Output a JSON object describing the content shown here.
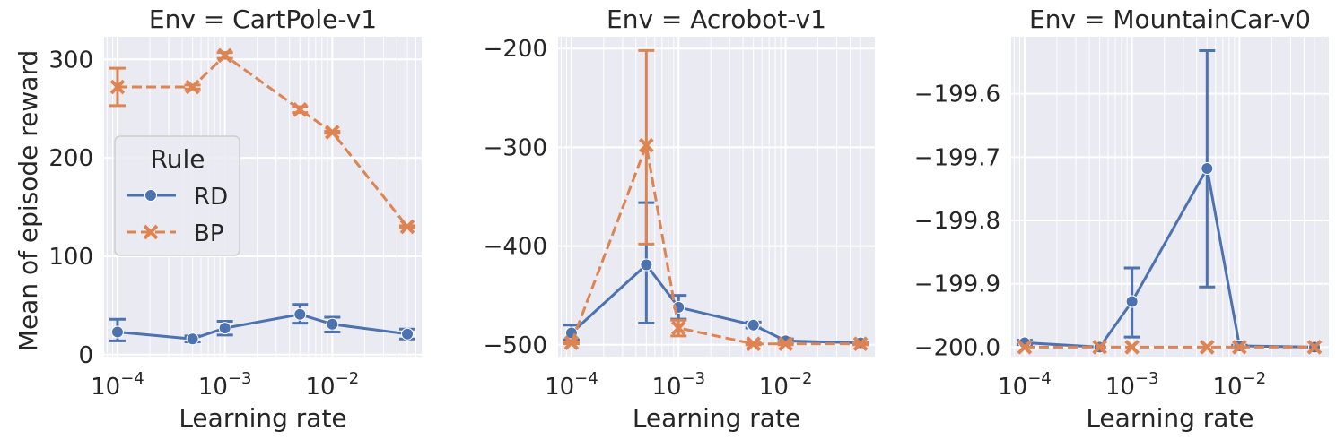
{
  "figure": {
    "ylabel": "Mean of episode reward",
    "legend": {
      "title": "Rule",
      "placement": "left",
      "entries": [
        {
          "label": "RD",
          "color": "#4c72b0",
          "marker": "circle",
          "style": "solid"
        },
        {
          "label": "BP",
          "color": "#dd8452",
          "marker": "x",
          "style": "dashed"
        }
      ]
    }
  },
  "chart_data": [
    {
      "type": "line",
      "title": "Env = CartPole-v1",
      "xlabel": "Learning rate",
      "ylabel": "Mean of episode reward",
      "xscale": "log",
      "xlim": [
        7.5e-05,
        0.068
      ],
      "ylim": [
        -2,
        323
      ],
      "xticks": [
        {
          "value": 0.0001,
          "mant": "10",
          "exp": "−4"
        },
        {
          "value": 0.001,
          "mant": "10",
          "exp": "−3"
        },
        {
          "value": 0.01,
          "mant": "10",
          "exp": "−2"
        }
      ],
      "yticks": [
        {
          "value": 0,
          "label": "0"
        },
        {
          "value": 100,
          "label": "100"
        },
        {
          "value": 200,
          "label": "200"
        },
        {
          "value": 300,
          "label": "300"
        }
      ],
      "grid": true,
      "series": [
        {
          "name": "RD",
          "x": [
            0.0001,
            0.0005,
            0.001,
            0.005,
            0.01,
            0.05
          ],
          "y": [
            23,
            16,
            27,
            41,
            31,
            21
          ],
          "err_low": [
            14,
            13,
            20,
            32,
            23,
            16
          ],
          "err_high": [
            36,
            19,
            34,
            51,
            38,
            26
          ]
        },
        {
          "name": "BP",
          "x": [
            0.0001,
            0.0005,
            0.001,
            0.005,
            0.01,
            0.05
          ],
          "y": [
            272,
            272,
            304,
            249,
            226,
            130
          ],
          "err_low": [
            253,
            270,
            301,
            246,
            225,
            129
          ],
          "err_high": [
            291,
            274,
            307,
            252,
            227,
            131
          ]
        }
      ]
    },
    {
      "type": "line",
      "title": "Env = Acrobot-v1",
      "xlabel": "Learning rate",
      "ylabel": "",
      "xscale": "log",
      "xlim": [
        7.5e-05,
        0.068
      ],
      "ylim": [
        -512,
        -188
      ],
      "xticks": [
        {
          "value": 0.0001,
          "mant": "10",
          "exp": "−4"
        },
        {
          "value": 0.001,
          "mant": "10",
          "exp": "−3"
        },
        {
          "value": 0.01,
          "mant": "10",
          "exp": "−2"
        }
      ],
      "yticks": [
        {
          "value": -500,
          "label": "−500"
        },
        {
          "value": -400,
          "label": "−400"
        },
        {
          "value": -300,
          "label": "−300"
        },
        {
          "value": -200,
          "label": "−200"
        }
      ],
      "grid": true,
      "series": [
        {
          "name": "RD",
          "x": [
            0.0001,
            0.0005,
            0.001,
            0.005,
            0.01,
            0.05
          ],
          "y": [
            -488,
            -419,
            -462,
            -480,
            -496,
            -498
          ],
          "err_low": [
            -495,
            -478,
            -474,
            -483,
            -498,
            -499
          ],
          "err_high": [
            -480,
            -356,
            -450,
            -477,
            -494,
            -497
          ]
        },
        {
          "name": "BP",
          "x": [
            0.0001,
            0.0005,
            0.001,
            0.005,
            0.01,
            0.05
          ],
          "y": [
            -498,
            -298,
            -483,
            -499,
            -499,
            -499
          ],
          "err_low": [
            -499,
            -398,
            -491,
            -500,
            -500,
            -500
          ],
          "err_high": [
            -497,
            -202,
            -475,
            -498,
            -498,
            -498
          ]
        }
      ]
    },
    {
      "type": "line",
      "title": "Env = MountainCar-v0",
      "xlabel": "Learning rate",
      "ylabel": "",
      "xscale": "log",
      "xlim": [
        7.5e-05,
        0.068
      ],
      "ylim": [
        -200.015,
        -199.51
      ],
      "xticks": [
        {
          "value": 0.0001,
          "mant": "10",
          "exp": "−4"
        },
        {
          "value": 0.001,
          "mant": "10",
          "exp": "−3"
        },
        {
          "value": 0.01,
          "mant": "10",
          "exp": "−2"
        }
      ],
      "yticks": [
        {
          "value": -200.0,
          "label": "−200.0"
        },
        {
          "value": -199.9,
          "label": "−199.9"
        },
        {
          "value": -199.8,
          "label": "−199.8"
        },
        {
          "value": -199.7,
          "label": "−199.7"
        },
        {
          "value": -199.6,
          "label": "−199.6"
        }
      ],
      "grid": true,
      "series": [
        {
          "name": "RD",
          "x": [
            0.0001,
            0.0005,
            0.001,
            0.005,
            0.01,
            0.05
          ],
          "y": [
            -199.993,
            -200.0,
            -199.928,
            -199.718,
            -199.998,
            -200.0
          ],
          "err_low": [
            -199.996,
            -200.0,
            -199.984,
            -199.905,
            -199.999,
            -200.0
          ],
          "err_high": [
            -199.989,
            -200.0,
            -199.875,
            -199.532,
            -199.997,
            -200.0
          ]
        },
        {
          "name": "BP",
          "x": [
            0.0001,
            0.0005,
            0.001,
            0.005,
            0.01,
            0.05
          ],
          "y": [
            -200.0,
            -200.0,
            -200.0,
            -200.0,
            -200.0,
            -200.0
          ],
          "err_low": [
            -200.0,
            -200.0,
            -200.0,
            -200.0,
            -200.0,
            -200.0
          ],
          "err_high": [
            -200.0,
            -200.0,
            -200.0,
            -200.0,
            -200.0,
            -200.0
          ]
        }
      ]
    }
  ]
}
